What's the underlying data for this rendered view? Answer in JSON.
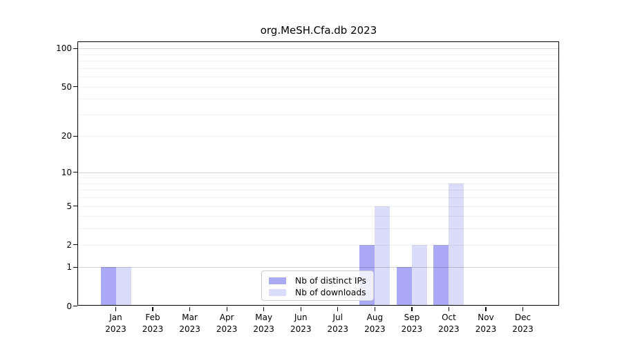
{
  "title": "org.MeSH.Cfa.db 2023",
  "chart_data": {
    "type": "bar",
    "title": "org.MeSH.Cfa.db 2023",
    "xlabel": "",
    "ylabel": "",
    "x_months": [
      "Jan",
      "Feb",
      "Mar",
      "Apr",
      "May",
      "Jun",
      "Jul",
      "Aug",
      "Sep",
      "Oct",
      "Nov",
      "Dec"
    ],
    "x_year": "2023",
    "series": [
      {
        "name": "Nb of distinct IPs",
        "color": "#a9a9f5",
        "values": [
          1,
          0,
          0,
          0,
          0,
          0,
          0,
          2,
          1,
          2,
          0,
          0
        ]
      },
      {
        "name": "Nb of downloads",
        "color": "#dbdbfa",
        "values": [
          1,
          0,
          0,
          0,
          0,
          0,
          0,
          5,
          2,
          8,
          0,
          0
        ]
      }
    ],
    "y_scale": "log1p",
    "y_ticks": [
      0,
      1,
      2,
      5,
      10,
      20,
      50,
      100
    ],
    "ylim": [
      0,
      114
    ],
    "grid": "on",
    "grid_major_values": [
      1,
      10,
      100
    ],
    "grid_minor_values": [
      2,
      3,
      4,
      5,
      6,
      7,
      8,
      9,
      20,
      30,
      40,
      50,
      60,
      70,
      80,
      90
    ],
    "legend_position": "lower-center"
  },
  "colors": {
    "background": "#ffffff",
    "axis": "#000000",
    "grid_major": "rgba(0,0,0,0.17)",
    "grid_minor": "rgba(0,0,0,0.055)",
    "legend_border": "#cccccc",
    "bar_distinct_ips": "#a9a9f5",
    "bar_downloads": "#dbdbfa"
  }
}
